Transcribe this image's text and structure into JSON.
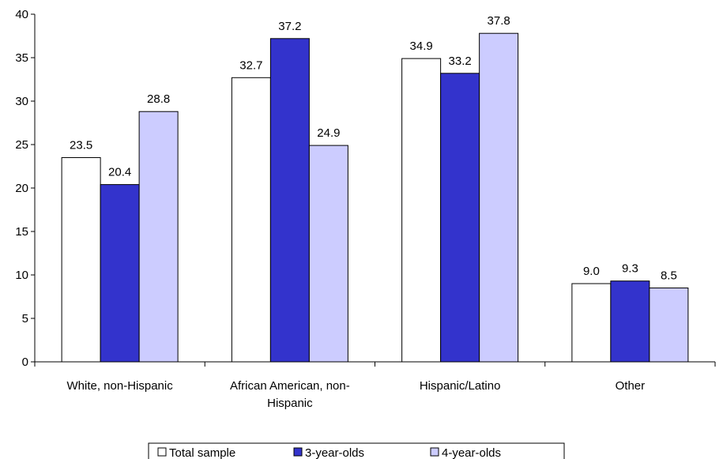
{
  "chart_data": {
    "type": "bar",
    "categories": [
      [
        "White, non-Hispanic"
      ],
      [
        "African American, non-",
        "Hispanic"
      ],
      [
        "Hispanic/Latino"
      ],
      [
        "Other"
      ]
    ],
    "series": [
      {
        "name": "Total sample",
        "values": [
          23.5,
          32.7,
          34.9,
          9.0
        ],
        "labels": [
          "23.5",
          "32.7",
          "34.9",
          "9.0"
        ],
        "color": "#ffffff"
      },
      {
        "name": "3-year-olds",
        "values": [
          20.4,
          37.2,
          33.2,
          9.3
        ],
        "labels": [
          "20.4",
          "37.2",
          "33.2",
          "9.3"
        ],
        "color": "#3333cc"
      },
      {
        "name": "4-year-olds",
        "values": [
          28.8,
          24.9,
          37.8,
          8.5
        ],
        "labels": [
          "28.8",
          "24.9",
          "37.8",
          "8.5"
        ],
        "color": "#ccccff"
      }
    ],
    "ylim": [
      0,
      40
    ],
    "yticks": [
      "0",
      "5",
      "10",
      "15",
      "20",
      "25",
      "30",
      "35",
      "40"
    ],
    "grid": false,
    "legend_position": "bottom"
  }
}
